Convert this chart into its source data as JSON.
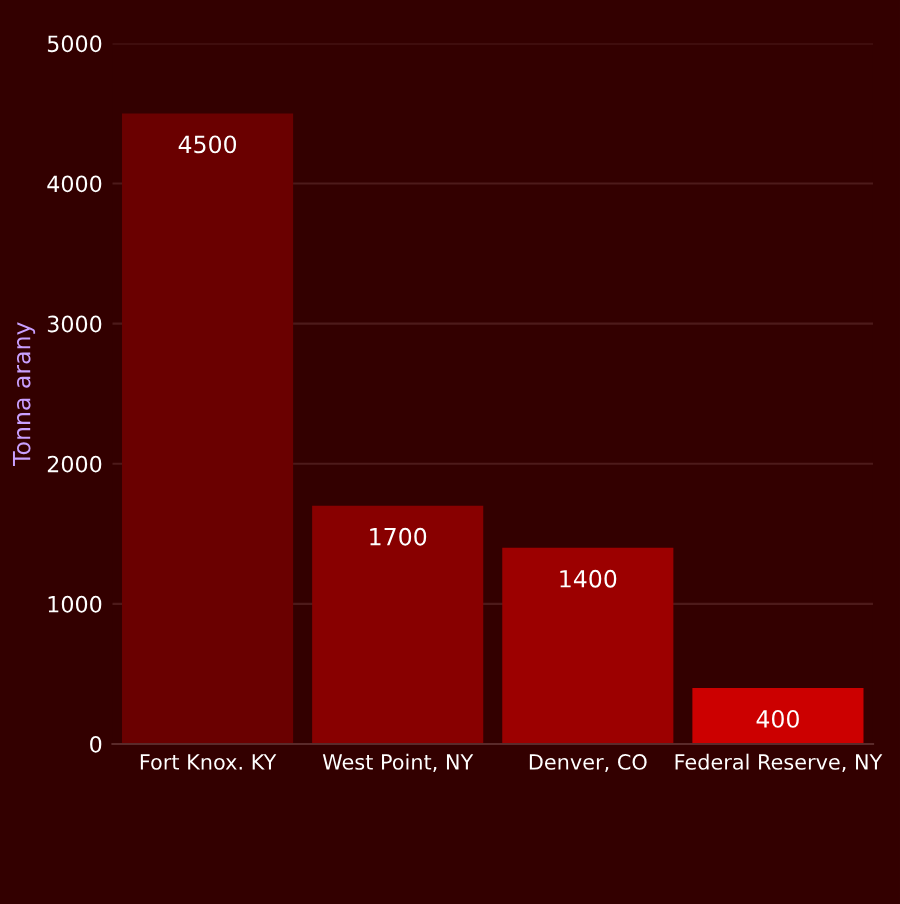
{
  "chart_data": {
    "type": "bar",
    "ylabel": "Tonna arany",
    "categories": [
      "Fort Knox. KY",
      "West Point, NY",
      "Denver, CO",
      "Federal Reserve, NY"
    ],
    "values": [
      4500,
      1700,
      1400,
      400
    ],
    "colors": [
      "#6a0000",
      "#880000",
      "#9c0000",
      "#cc0000"
    ],
    "ylim": [
      0,
      5000
    ],
    "yticks": [
      0,
      1000,
      2000,
      3000,
      4000,
      5000
    ],
    "grid": "y",
    "data_labels": true
  }
}
